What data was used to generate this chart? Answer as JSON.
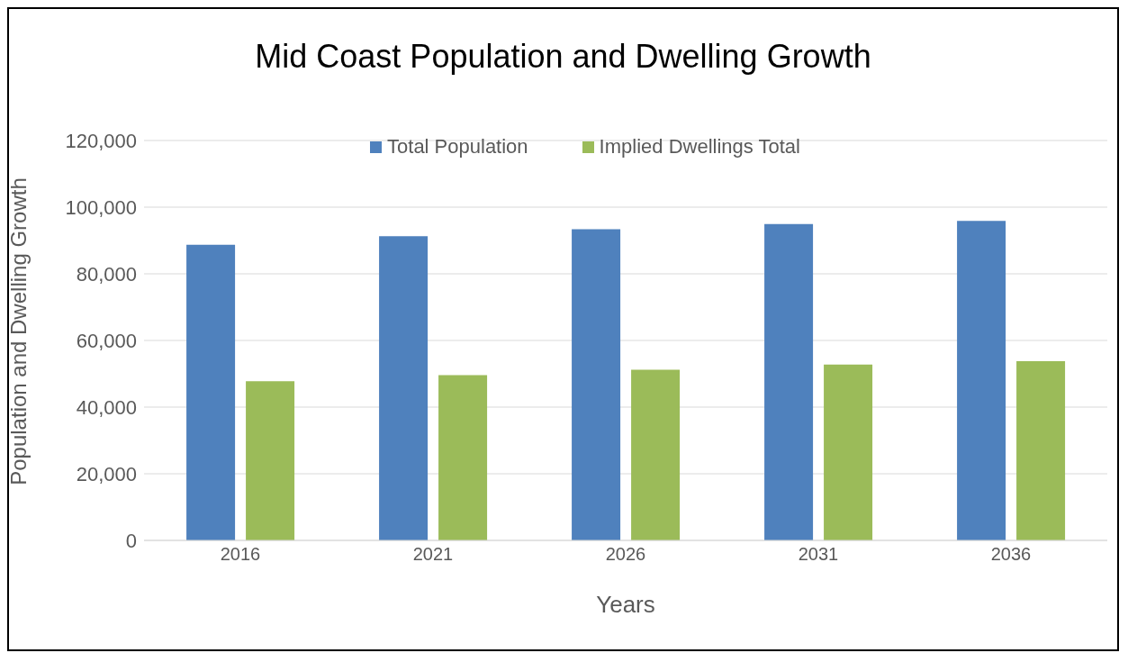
{
  "chart_data": {
    "type": "bar",
    "title": "Mid Coast Population and Dwelling Growth",
    "xlabel": "Years",
    "ylabel": "Population and Dwelling Growth",
    "categories": [
      "2016",
      "2021",
      "2026",
      "2031",
      "2036"
    ],
    "series": [
      {
        "name": "Total Population",
        "color": "#4f81bd",
        "values": [
          88700,
          91300,
          93400,
          94900,
          95900
        ]
      },
      {
        "name": "Implied Dwellings Total",
        "color": "#9bbb59",
        "values": [
          47800,
          49600,
          51200,
          52800,
          53800
        ]
      }
    ],
    "ylim": [
      0,
      120000
    ],
    "yticks": [
      0,
      {
        "value": 20000,
        "label": "20,000"
      },
      {
        "value": 40000,
        "label": "40,000"
      },
      {
        "value": 60000,
        "label": "60,000"
      },
      {
        "value": 80000,
        "label": "80,000"
      },
      {
        "value": 100000,
        "label": "100,000"
      },
      {
        "value": 120000,
        "label": "120,000"
      }
    ],
    "grid": "y",
    "legend": "top"
  }
}
